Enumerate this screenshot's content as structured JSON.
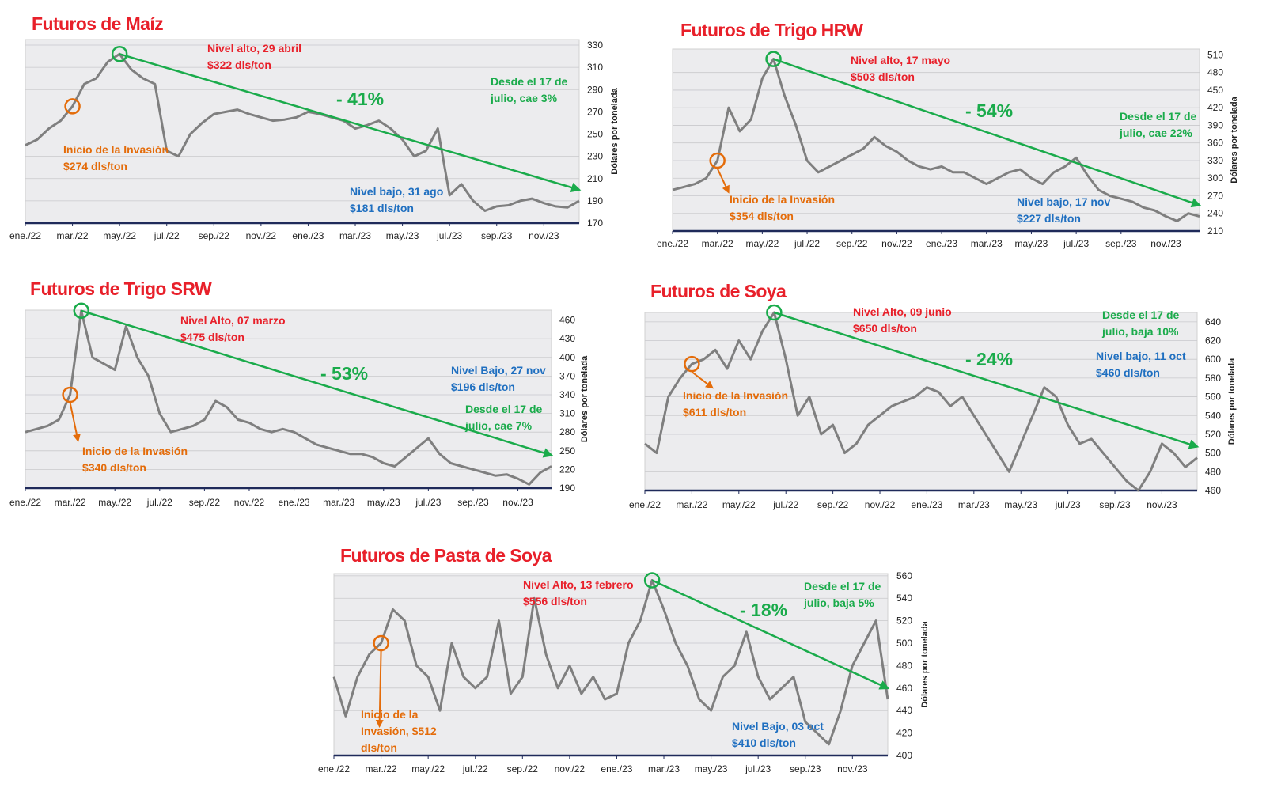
{
  "chart_data": [
    {
      "type": "line",
      "title": "Futuros de Maíz",
      "y_label": "Dólares por tonelada",
      "x": [
        0,
        0.5,
        1,
        1.5,
        2,
        2.5,
        3,
        3.5,
        4,
        4.5,
        5,
        5.5,
        6,
        6.5,
        7,
        7.5,
        8,
        8.5,
        9,
        9.5,
        10,
        10.5,
        11,
        11.5,
        12,
        12.5,
        13,
        13.5,
        14,
        14.5,
        15,
        15.5,
        16,
        16.5,
        17,
        17.5,
        18,
        18.5,
        19,
        19.5,
        20,
        20.5,
        21,
        21.5,
        22,
        22.5,
        23,
        23.5
      ],
      "xlim": [
        0,
        23.5
      ],
      "xticks": [
        {
          "value": 0,
          "label": "ene./22"
        },
        {
          "value": 2,
          "label": "mar./22"
        },
        {
          "value": 4,
          "label": "may./22"
        },
        {
          "value": 6,
          "label": "jul./22"
        },
        {
          "value": 8,
          "label": "sep./22"
        },
        {
          "value": 10,
          "label": "nov./22"
        },
        {
          "value": 12,
          "label": "ene./23"
        },
        {
          "value": 14,
          "label": "mar./23"
        },
        {
          "value": 16,
          "label": "may./23"
        },
        {
          "value": 18,
          "label": "jul./23"
        },
        {
          "value": 20,
          "label": "sep./23"
        },
        {
          "value": 22,
          "label": "nov./23"
        }
      ],
      "ylim": [
        170,
        335
      ],
      "yticks": [
        170,
        190,
        210,
        230,
        250,
        270,
        290,
        310,
        330
      ],
      "series": [
        {
          "color": "#7f7f7f",
          "values": [
            240,
            245,
            255,
            262,
            275,
            295,
            300,
            315,
            322,
            308,
            300,
            295,
            235,
            230,
            250,
            260,
            268,
            270,
            272,
            268,
            265,
            262,
            263,
            265,
            270,
            268,
            265,
            262,
            255,
            258,
            262,
            255,
            245,
            230,
            235,
            255,
            195,
            205,
            190,
            181,
            185,
            186,
            190,
            192,
            188,
            185,
            184,
            190
          ]
        }
      ],
      "change": "- 41%",
      "annotations": [
        {
          "lines": [
            "Nivel alto, 29 abril",
            "$322 dls/ton"
          ],
          "color": "#e8202a"
        },
        {
          "lines": [
            "Desde el 17 de",
            "julio, cae 3%"
          ],
          "color": "#1aab4b"
        },
        {
          "lines": [
            "Inicio de la Invasión",
            "$274 dls/ton"
          ],
          "color": "#e46c0a"
        },
        {
          "lines": [
            "Nivel bajo, 31 ago",
            "$181 dls/ton"
          ],
          "color": "#1f6fc0"
        }
      ]
    },
    {
      "type": "line",
      "title": "Futuros de Trigo HRW",
      "y_label": "Dólares por tonelada",
      "x": [
        0,
        0.5,
        1,
        1.5,
        2,
        2.5,
        3,
        3.5,
        4,
        4.5,
        5,
        5.5,
        6,
        6.5,
        7,
        7.5,
        8,
        8.5,
        9,
        9.5,
        10,
        10.5,
        11,
        11.5,
        12,
        12.5,
        13,
        13.5,
        14,
        14.5,
        15,
        15.5,
        16,
        16.5,
        17,
        17.5,
        18,
        18.5,
        19,
        19.5,
        20,
        20.5,
        21,
        21.5,
        22,
        22.5,
        23,
        23.5
      ],
      "xlim": [
        0,
        23.5
      ],
      "xticks": [
        {
          "value": 0,
          "label": "ene./22"
        },
        {
          "value": 2,
          "label": "mar./22"
        },
        {
          "value": 4,
          "label": "may./22"
        },
        {
          "value": 6,
          "label": "jul./22"
        },
        {
          "value": 8,
          "label": "sep./22"
        },
        {
          "value": 10,
          "label": "nov./22"
        },
        {
          "value": 12,
          "label": "ene./23"
        },
        {
          "value": 14,
          "label": "mar./23"
        },
        {
          "value": 16,
          "label": "may./23"
        },
        {
          "value": 18,
          "label": "jul./23"
        },
        {
          "value": 20,
          "label": "sep./23"
        },
        {
          "value": 22,
          "label": "nov./23"
        }
      ],
      "ylim": [
        210,
        520
      ],
      "yticks": [
        210,
        240,
        270,
        300,
        330,
        360,
        390,
        420,
        450,
        480,
        510
      ],
      "series": [
        {
          "color": "#7f7f7f",
          "values": [
            280,
            285,
            290,
            300,
            330,
            420,
            380,
            400,
            470,
            503,
            440,
            390,
            330,
            310,
            320,
            330,
            340,
            350,
            370,
            355,
            345,
            330,
            320,
            315,
            320,
            310,
            310,
            300,
            290,
            300,
            310,
            315,
            300,
            290,
            310,
            320,
            335,
            305,
            280,
            270,
            265,
            260,
            250,
            245,
            235,
            227,
            240,
            235
          ]
        }
      ],
      "change": "- 54%",
      "annotations": [
        {
          "lines": [
            "Nivel alto, 17 mayo",
            "$503 dls/ton"
          ],
          "color": "#e8202a"
        },
        {
          "lines": [
            "Desde el 17 de",
            "julio, cae 22%"
          ],
          "color": "#1aab4b"
        },
        {
          "lines": [
            "Inicio de la Invasión",
            "$354 dls/ton"
          ],
          "color": "#e46c0a"
        },
        {
          "lines": [
            "Nivel bajo, 17 nov",
            "$227 dls/ton"
          ],
          "color": "#1f6fc0"
        }
      ]
    },
    {
      "type": "line",
      "title": "Futuros de Trigo SRW",
      "y_label": "Dólares por tonelada",
      "x": [
        0,
        0.5,
        1,
        1.5,
        2,
        2.5,
        3,
        3.5,
        4,
        4.5,
        5,
        5.5,
        6,
        6.5,
        7,
        7.5,
        8,
        8.5,
        9,
        9.5,
        10,
        10.5,
        11,
        11.5,
        12,
        12.5,
        13,
        13.5,
        14,
        14.5,
        15,
        15.5,
        16,
        16.5,
        17,
        17.5,
        18,
        18.5,
        19,
        19.5,
        20,
        20.5,
        21,
        21.5,
        22,
        22.5,
        23,
        23.5
      ],
      "xlim": [
        0,
        23.5
      ],
      "xticks": [
        {
          "value": 0,
          "label": "ene./22"
        },
        {
          "value": 2,
          "label": "mar./22"
        },
        {
          "value": 4,
          "label": "may./22"
        },
        {
          "value": 6,
          "label": "jul./22"
        },
        {
          "value": 8,
          "label": "sep./22"
        },
        {
          "value": 10,
          "label": "nov./22"
        },
        {
          "value": 12,
          "label": "ene./23"
        },
        {
          "value": 14,
          "label": "mar./23"
        },
        {
          "value": 16,
          "label": "may./23"
        },
        {
          "value": 18,
          "label": "jul./23"
        },
        {
          "value": 20,
          "label": "sep./23"
        },
        {
          "value": 22,
          "label": "nov./23"
        }
      ],
      "ylim": [
        190,
        476
      ],
      "yticks": [
        190,
        220,
        250,
        280,
        310,
        340,
        370,
        400,
        430,
        460
      ],
      "series": [
        {
          "color": "#7f7f7f",
          "values": [
            280,
            285,
            290,
            300,
            340,
            475,
            400,
            390,
            380,
            450,
            400,
            370,
            310,
            280,
            285,
            290,
            300,
            330,
            320,
            300,
            295,
            285,
            280,
            285,
            280,
            270,
            260,
            255,
            250,
            245,
            245,
            240,
            230,
            225,
            240,
            255,
            270,
            245,
            230,
            225,
            220,
            215,
            210,
            212,
            205,
            196,
            215,
            225
          ]
        }
      ],
      "change": "- 53%",
      "annotations": [
        {
          "lines": [
            "Nivel Alto, 07 marzo",
            "$475 dls/ton"
          ],
          "color": "#e8202a"
        },
        {
          "lines": [
            "Desde el 17 de",
            "julio, cae 7%"
          ],
          "color": "#1aab4b"
        },
        {
          "lines": [
            "Inicio de la Invasión",
            "$340 dls/ton"
          ],
          "color": "#e46c0a"
        },
        {
          "lines": [
            "Nivel Bajo, 27 nov",
            "$196 dls/ton"
          ],
          "color": "#1f6fc0"
        }
      ]
    },
    {
      "type": "line",
      "title": "Futuros de Soya",
      "y_label": "Dólares por tonelada",
      "x": [
        0,
        0.5,
        1,
        1.5,
        2,
        2.5,
        3,
        3.5,
        4,
        4.5,
        5,
        5.5,
        6,
        6.5,
        7,
        7.5,
        8,
        8.5,
        9,
        9.5,
        10,
        10.5,
        11,
        11.5,
        12,
        12.5,
        13,
        13.5,
        14,
        14.5,
        15,
        15.5,
        16,
        16.5,
        17,
        17.5,
        18,
        18.5,
        19,
        19.5,
        20,
        20.5,
        21,
        21.5,
        22,
        22.5,
        23,
        23.5
      ],
      "xlim": [
        0,
        23.5
      ],
      "xticks": [
        {
          "value": 0,
          "label": "ene./22"
        },
        {
          "value": 2,
          "label": "mar./22"
        },
        {
          "value": 4,
          "label": "may./22"
        },
        {
          "value": 6,
          "label": "jul./22"
        },
        {
          "value": 8,
          "label": "sep./22"
        },
        {
          "value": 10,
          "label": "nov./22"
        },
        {
          "value": 12,
          "label": "ene./23"
        },
        {
          "value": 14,
          "label": "mar./23"
        },
        {
          "value": 16,
          "label": "may./23"
        },
        {
          "value": 18,
          "label": "jul./23"
        },
        {
          "value": 20,
          "label": "sep./23"
        },
        {
          "value": 22,
          "label": "nov./23"
        }
      ],
      "ylim": [
        460,
        650
      ],
      "yticks": [
        460,
        480,
        500,
        520,
        540,
        560,
        580,
        600,
        620,
        640
      ],
      "series": [
        {
          "color": "#7f7f7f",
          "values": [
            510,
            500,
            560,
            580,
            595,
            600,
            610,
            590,
            620,
            600,
            630,
            650,
            600,
            540,
            560,
            520,
            530,
            500,
            510,
            530,
            540,
            550,
            555,
            560,
            570,
            565,
            550,
            560,
            540,
            520,
            500,
            480,
            510,
            540,
            570,
            560,
            530,
            510,
            515,
            500,
            485,
            470,
            460,
            480,
            510,
            500,
            485,
            495
          ]
        }
      ],
      "change": "- 24%",
      "annotations": [
        {
          "lines": [
            "Nivel Alto, 09 junio",
            "$650 dls/ton"
          ],
          "color": "#e8202a"
        },
        {
          "lines": [
            "Desde el 17 de",
            "julio, baja 10%"
          ],
          "color": "#1aab4b"
        },
        {
          "lines": [
            "Inicio de la Invasión",
            "$611 dls/ton"
          ],
          "color": "#e46c0a"
        },
        {
          "lines": [
            "Nivel bajo, 11 oct",
            "$460 dls/ton"
          ],
          "color": "#1f6fc0"
        }
      ]
    },
    {
      "type": "line",
      "title": "Futuros de Pasta de Soya",
      "y_label": "Dólares por tonelada",
      "x": [
        0,
        0.5,
        1,
        1.5,
        2,
        2.5,
        3,
        3.5,
        4,
        4.5,
        5,
        5.5,
        6,
        6.5,
        7,
        7.5,
        8,
        8.5,
        9,
        9.5,
        10,
        10.5,
        11,
        11.5,
        12,
        12.5,
        13,
        13.5,
        14,
        14.5,
        15,
        15.5,
        16,
        16.5,
        17,
        17.5,
        18,
        18.5,
        19,
        19.5,
        20,
        20.5,
        21,
        21.5,
        22,
        22.5,
        23,
        23.5
      ],
      "xlim": [
        0,
        23.5
      ],
      "xticks": [
        {
          "value": 0,
          "label": "ene./22"
        },
        {
          "value": 2,
          "label": "mar./22"
        },
        {
          "value": 4,
          "label": "may./22"
        },
        {
          "value": 6,
          "label": "jul./22"
        },
        {
          "value": 8,
          "label": "sep./22"
        },
        {
          "value": 10,
          "label": "nov./22"
        },
        {
          "value": 12,
          "label": "ene./23"
        },
        {
          "value": 14,
          "label": "mar./23"
        },
        {
          "value": 16,
          "label": "may./23"
        },
        {
          "value": 18,
          "label": "jul./23"
        },
        {
          "value": 20,
          "label": "sep./23"
        },
        {
          "value": 22,
          "label": "nov./23"
        }
      ],
      "ylim": [
        400,
        562
      ],
      "yticks": [
        400,
        420,
        440,
        460,
        480,
        500,
        520,
        540,
        560
      ],
      "series": [
        {
          "color": "#7f7f7f",
          "values": [
            470,
            435,
            470,
            490,
            500,
            530,
            520,
            480,
            470,
            440,
            500,
            470,
            460,
            470,
            520,
            455,
            470,
            540,
            490,
            460,
            480,
            455,
            470,
            450,
            455,
            500,
            520,
            556,
            530,
            500,
            480,
            450,
            440,
            470,
            480,
            510,
            470,
            450,
            460,
            470,
            430,
            420,
            410,
            440,
            480,
            500,
            520,
            450
          ]
        }
      ],
      "change": "- 18%",
      "annotations": [
        {
          "lines": [
            "Nivel Alto, 13 febrero",
            "$556 dls/ton"
          ],
          "color": "#e8202a"
        },
        {
          "lines": [
            "Desde el 17 de",
            "julio, baja 5%"
          ],
          "color": "#1aab4b"
        },
        {
          "lines": [
            "Inicio de la",
            "Invasión, $512",
            "dls/ton"
          ],
          "color": "#e46c0a"
        },
        {
          "lines": [
            "Nivel Bajo, 03 oct",
            "$410 dls/ton"
          ],
          "color": "#1f6fc0"
        }
      ]
    }
  ]
}
